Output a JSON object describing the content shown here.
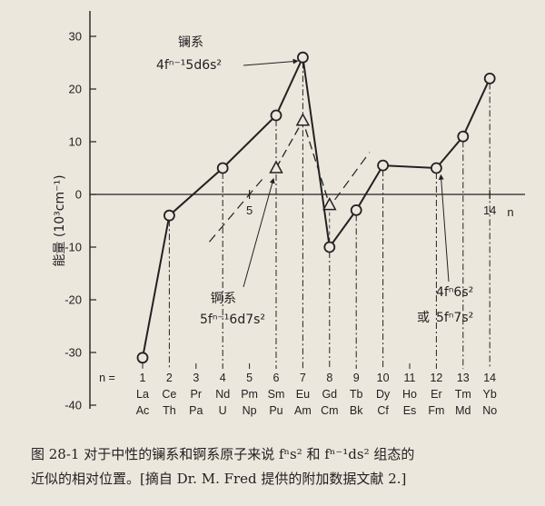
{
  "chart_data": {
    "type": "line",
    "ylabel": "能量 (10³cm⁻¹)",
    "xlabel": "n",
    "ylim": [
      -40,
      30
    ],
    "yticks": [
      30,
      20,
      10,
      0,
      -10,
      -20,
      -30,
      -40
    ],
    "ytick_labels": [
      "30",
      "20",
      "10",
      "0",
      "-10",
      "-20",
      "-30",
      "-40"
    ],
    "xaxis_ticks": [
      {
        "x": 5,
        "label": "5"
      },
      {
        "x": 14,
        "label": "14"
      }
    ],
    "n_row_label": "n =",
    "n_values": [
      "1",
      "2",
      "3",
      "4",
      "5",
      "6",
      "7",
      "8",
      "9",
      "10",
      "11",
      "12",
      "13",
      "14"
    ],
    "lanthanides": [
      "La",
      "Ce",
      "Pr",
      "Nd",
      "Pm",
      "Sm",
      "Eu",
      "Gd",
      "Tb",
      "Dy",
      "Ho",
      "Er",
      "Tm",
      "Yb"
    ],
    "actinides": [
      "Ac",
      "Th",
      "Pa",
      "U",
      "Np",
      "Pu",
      "Am",
      "Cm",
      "Bk",
      "Cf",
      "Es",
      "Fm",
      "Md",
      "No"
    ],
    "series": [
      {
        "name": "镧系",
        "formula": "4fⁿ⁻¹5d6s²",
        "marker": "circle",
        "style": "solid",
        "points": [
          [
            1,
            -31
          ],
          [
            2,
            -4
          ],
          [
            4,
            5
          ],
          [
            6,
            15
          ],
          [
            7,
            26
          ],
          [
            8,
            -10
          ],
          [
            9,
            -3
          ],
          [
            10,
            5.5
          ],
          [
            12,
            5
          ],
          [
            13,
            11
          ],
          [
            14,
            22
          ]
        ]
      },
      {
        "name": "锕系",
        "formula": "5fⁿ⁻¹6d7s²",
        "marker": "triangle",
        "style": "dashed",
        "points": [
          [
            6,
            5
          ],
          [
            7,
            14
          ],
          [
            8,
            -2
          ]
        ]
      }
    ],
    "dashed_extension_left": [
      [
        3.5,
        -9
      ],
      [
        5.5,
        3
      ]
    ],
    "dashed_extension_right": [
      [
        8.2,
        -1
      ],
      [
        9.5,
        8
      ]
    ],
    "annotations": [
      {
        "text": "或",
        "target": "4fⁿ6s² / 5fⁿ7s²"
      },
      {
        "text": "4fⁿ6s²"
      },
      {
        "text": "5fⁿ7s²"
      }
    ],
    "grid": false
  },
  "caption": {
    "line1": "图 28-1   对于中性的镧系和锕系原子来说 fⁿs² 和 fⁿ⁻¹ds² 组态的",
    "line2": "近似的相对位置。[摘自 Dr. M. Fred 提供的附加数据文献 2.]"
  }
}
